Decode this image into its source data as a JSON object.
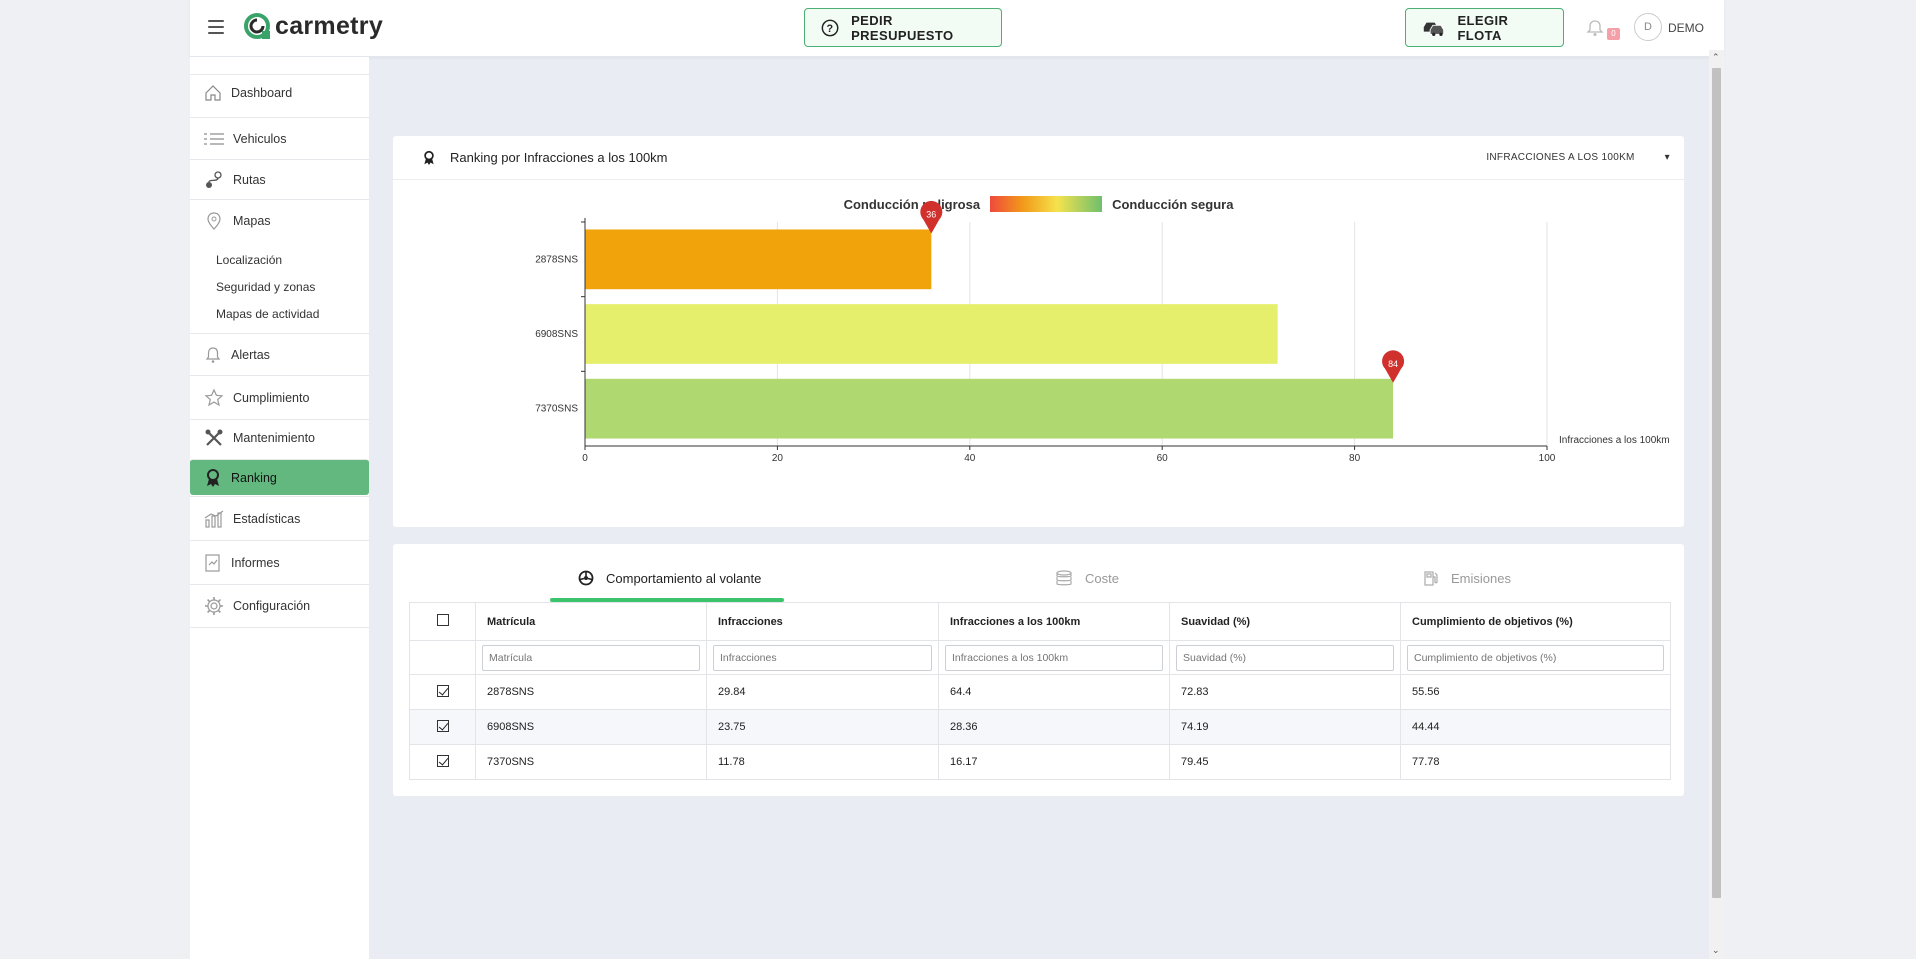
{
  "header": {
    "logo_text": "carmetry",
    "presupuesto_label": "PEDIR PRESUPUESTO",
    "flota_label": "ELEGIR FLOTA",
    "notification_count": "0",
    "avatar_initial": "D",
    "user_name": "DEMO"
  },
  "sidebar": {
    "items": [
      {
        "label": "Dashboard",
        "icon": "home-icon"
      },
      {
        "label": "Vehiculos",
        "icon": "list-icon"
      },
      {
        "label": "Rutas",
        "icon": "route-icon"
      },
      {
        "label": "Mapas",
        "icon": "map-pin-icon"
      },
      {
        "label": "Alertas",
        "icon": "bell-icon"
      },
      {
        "label": "Cumplimiento",
        "icon": "star-icon"
      },
      {
        "label": "Mantenimiento",
        "icon": "tools-icon"
      },
      {
        "label": "Ranking",
        "icon": "award-icon"
      },
      {
        "label": "Estadísticas",
        "icon": "chart-icon"
      },
      {
        "label": "Informes",
        "icon": "report-icon"
      },
      {
        "label": "Configuración",
        "icon": "gear-icon"
      }
    ],
    "mapas_sub": [
      "Localización",
      "Seguridad y zonas",
      "Mapas de actividad"
    ],
    "active": "Ranking"
  },
  "ranking_card": {
    "title": "Ranking por Infracciones a los 100km",
    "select_value": "INFRACCIONES A LOS 100KM",
    "legend_left": "Conducción peligrosa",
    "legend_right": "Conducción segura"
  },
  "chart_data": {
    "type": "bar",
    "orientation": "horizontal",
    "categories": [
      "2878SNS",
      "6908SNS",
      "7370SNS"
    ],
    "values": [
      36,
      72,
      84
    ],
    "bar_colors": [
      "#f0a30a",
      "#e6ef6c",
      "#b0d870"
    ],
    "markers": [
      {
        "category": "2878SNS",
        "label": "36"
      },
      {
        "category": "7370SNS",
        "label": "84"
      }
    ],
    "xlabel": "Infracciones a los 100km",
    "xlim": [
      0,
      100
    ],
    "xticks": [
      0,
      20,
      40,
      60,
      80,
      100
    ],
    "grid": true
  },
  "table_card": {
    "tabs": [
      {
        "label": "Comportamiento al volante",
        "icon": "steering-wheel-icon",
        "active": true
      },
      {
        "label": "Coste",
        "icon": "coins-icon",
        "active": false
      },
      {
        "label": "Emisiones",
        "icon": "fuel-icon",
        "active": false
      }
    ],
    "columns": [
      "Matrícula",
      "Infracciones",
      "Infracciones a los 100km",
      "Suavidad (%)",
      "Cumplimiento de objetivos (%)"
    ],
    "placeholders": [
      "Matrícula",
      "Infracciones",
      "Infracciones a los 100km",
      "Suavidad (%)",
      "Cumplimiento de objetivos (%)"
    ],
    "rows": [
      [
        "2878SNS",
        "29.84",
        "64.4",
        "72.83",
        "55.56"
      ],
      [
        "6908SNS",
        "23.75",
        "28.36",
        "74.19",
        "44.44"
      ],
      [
        "7370SNS",
        "11.78",
        "16.17",
        "79.45",
        "77.78"
      ]
    ]
  },
  "colors": {
    "accent": "#4caf73",
    "active_nav": "#63b87f",
    "tab_underline": "#3cc46d",
    "marker": "#d0312d"
  }
}
